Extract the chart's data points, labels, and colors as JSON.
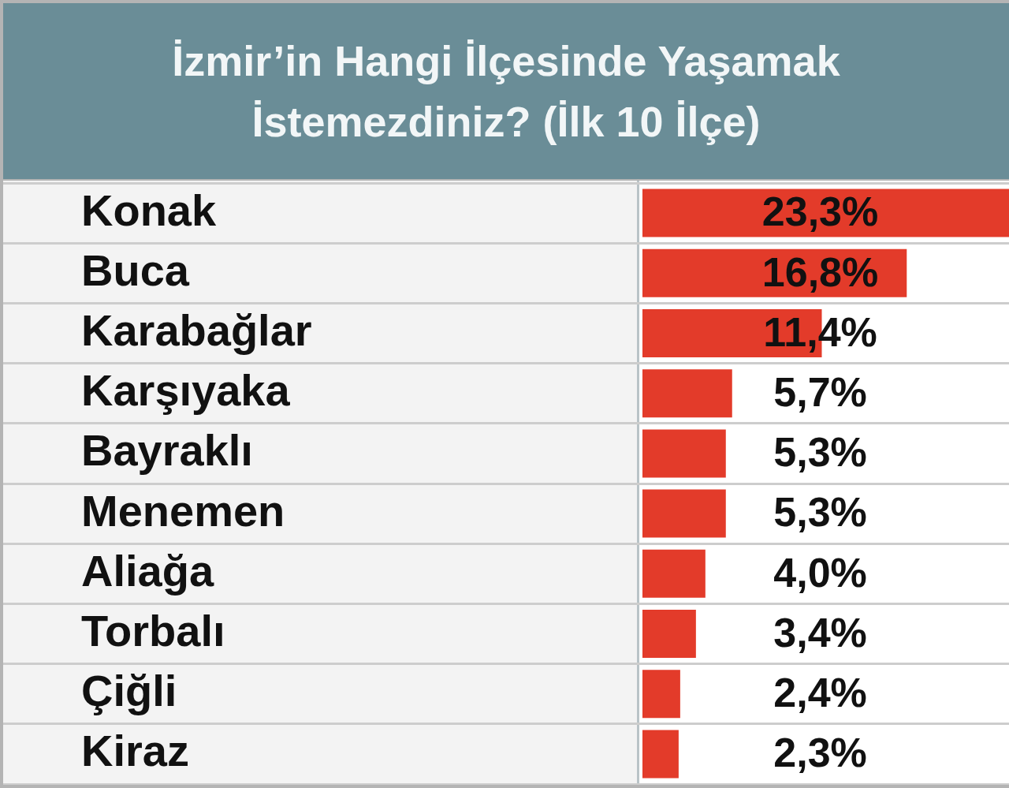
{
  "chart_data": {
    "type": "bar",
    "orientation": "horizontal",
    "title": "İzmir’in Hangi İlçesinde Yaşamak İstemezdiniz? (İlk 10 İlçe)",
    "categories": [
      "Konak",
      "Buca",
      "Karabağlar",
      "Karşıyaka",
      "Bayraklı",
      "Menemen",
      "Aliağa",
      "Torbalı",
      "Çiğli",
      "Kiraz"
    ],
    "values": [
      23.3,
      16.8,
      11.4,
      5.7,
      5.3,
      5.3,
      4.0,
      3.4,
      2.4,
      2.3
    ],
    "value_labels": [
      "23,3%",
      "16,8%",
      "11,4%",
      "5,7%",
      "5,3%",
      "5,3%",
      "4,0%",
      "3,4%",
      "2,4%",
      "2,3%"
    ],
    "color": "#e33b2a",
    "xlim": [
      0,
      23.3
    ],
    "tick_labels": "y",
    "grid": "y",
    "legend": false
  }
}
